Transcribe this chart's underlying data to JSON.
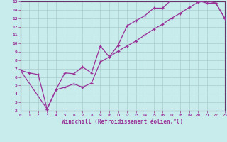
{
  "xlabel": "Windchill (Refroidissement éolien,°C)",
  "xlim": [
    0,
    23
  ],
  "ylim": [
    2,
    15
  ],
  "xticks": [
    0,
    1,
    2,
    3,
    4,
    5,
    6,
    7,
    8,
    9,
    10,
    11,
    12,
    13,
    14,
    15,
    16,
    17,
    18,
    19,
    20,
    21,
    22,
    23
  ],
  "yticks": [
    2,
    3,
    4,
    5,
    6,
    7,
    8,
    9,
    10,
    11,
    12,
    13,
    14,
    15
  ],
  "bg_color": "#c8ecec",
  "grid_color": "#aacccc",
  "line_color": "#993399",
  "spine_color": "#663366",
  "curve1_x": [
    0,
    1,
    2,
    3,
    4,
    5,
    6,
    7,
    8,
    9,
    10,
    11,
    12,
    13,
    14,
    15,
    16,
    17,
    18,
    19,
    20,
    21,
    22,
    23
  ],
  "curve1_y": [
    6.8,
    6.5,
    6.3,
    2.2,
    4.5,
    6.5,
    6.4,
    7.2,
    6.5,
    9.7,
    8.4,
    9.8,
    12.1,
    12.7,
    13.3,
    14.2,
    14.2,
    15.2,
    15.2,
    15.2,
    15.1,
    14.8,
    14.8,
    13.0
  ],
  "curve2_x": [
    0,
    3,
    4,
    5,
    6,
    7,
    8,
    9,
    10,
    11,
    12,
    13,
    14,
    15,
    16,
    17,
    18,
    19,
    20,
    21,
    22,
    23
  ],
  "curve2_y": [
    6.8,
    2.2,
    4.5,
    4.8,
    5.2,
    4.8,
    5.3,
    7.8,
    8.4,
    9.1,
    9.7,
    10.3,
    11.0,
    11.7,
    12.3,
    13.0,
    13.6,
    14.3,
    14.9,
    15.1,
    14.8,
    13.0
  ],
  "figsize": [
    3.2,
    2.0
  ],
  "dpi": 100
}
